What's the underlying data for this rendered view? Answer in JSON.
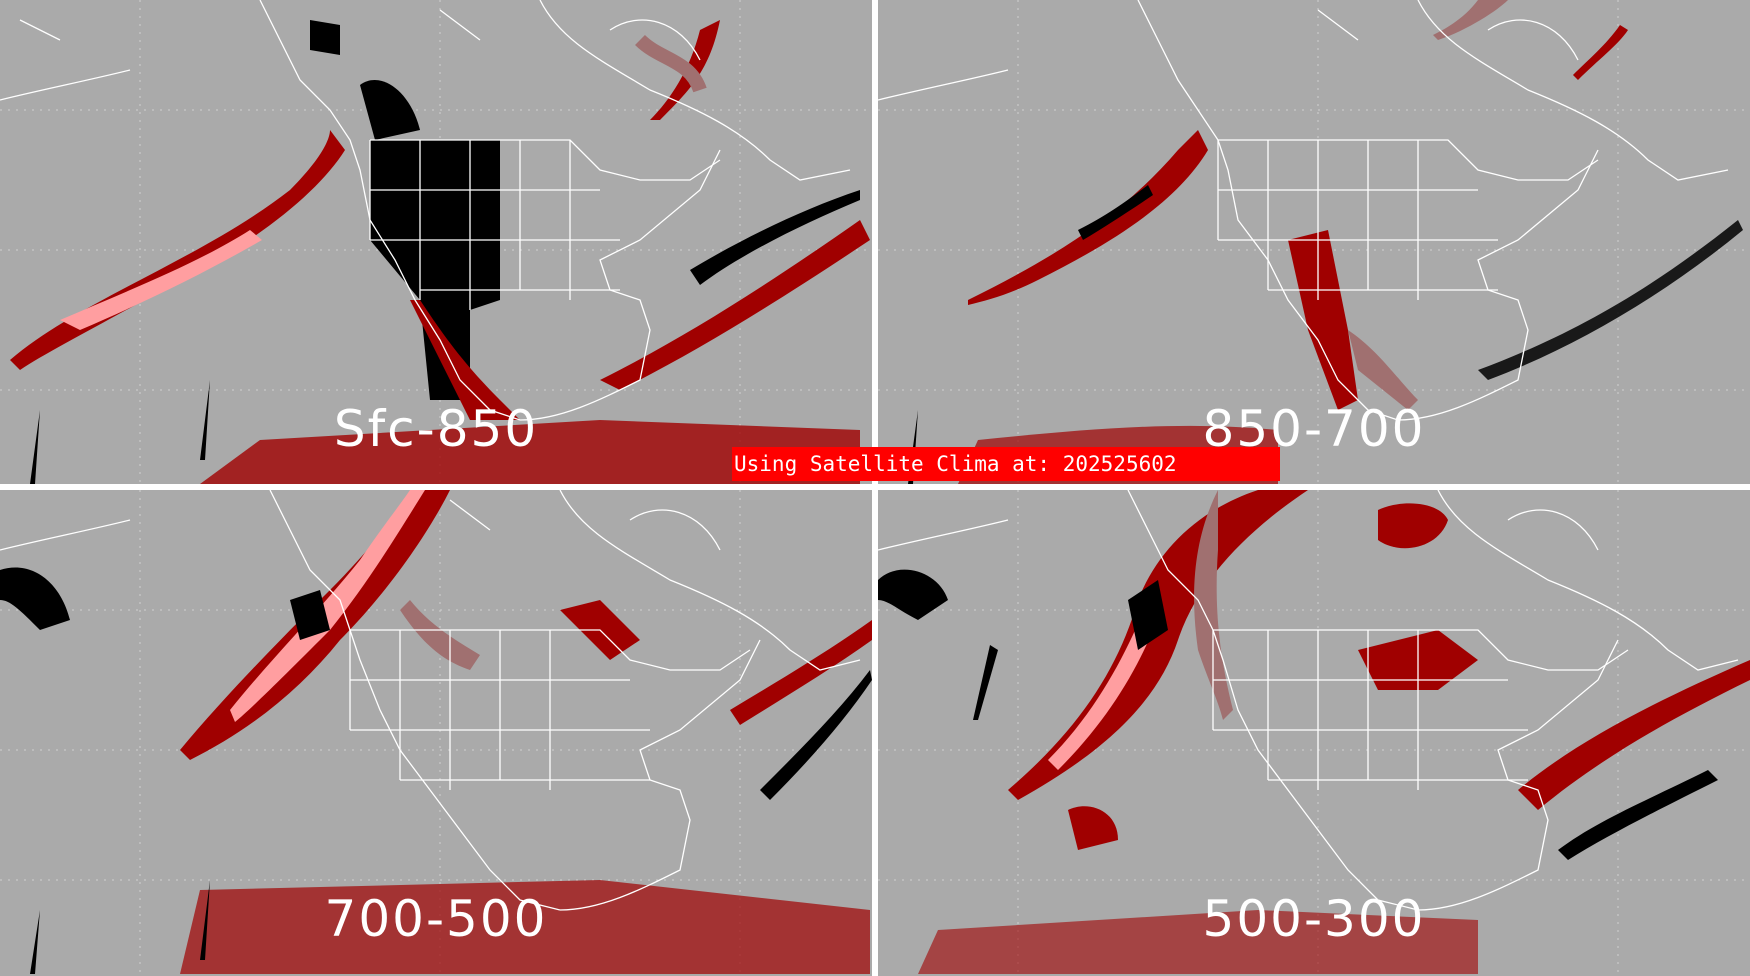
{
  "banner": {
    "prefix": "Using Satellite Clima at: ",
    "timestamp": "202525602"
  },
  "panels": [
    {
      "id": "sfc-850",
      "label": "Sfc-850"
    },
    {
      "id": "850-700",
      "label": "850-700"
    },
    {
      "id": "700-500",
      "label": "700-500"
    },
    {
      "id": "500-300",
      "label": "500-300"
    }
  ],
  "colors": {
    "background": "#aaaaaa",
    "map_lines": "#ffffff",
    "missing_or_high": "#000000",
    "dark_red": "#a00000",
    "light_red_muted": "#a07070",
    "pink": "#ff9ea0",
    "banner": "#ff0000"
  }
}
